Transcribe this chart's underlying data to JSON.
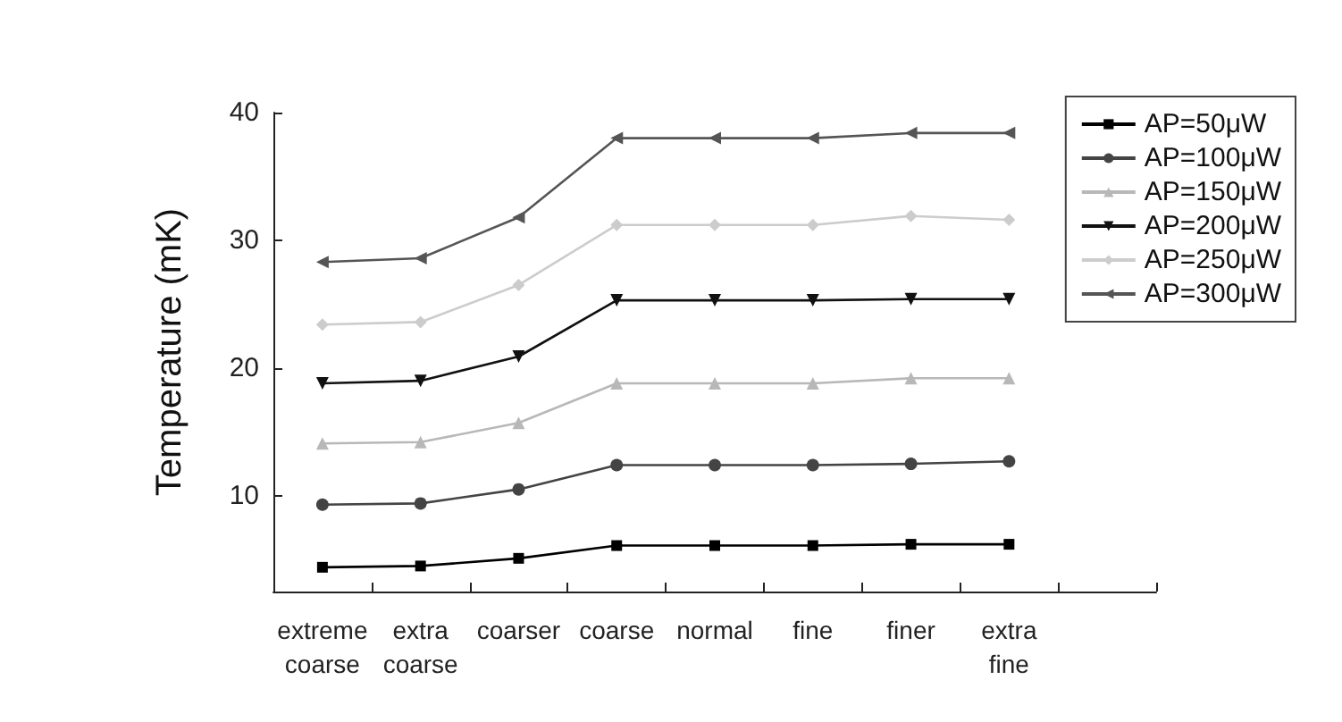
{
  "chart_data": {
    "type": "line",
    "ylabel": "Temperature (mK)",
    "categories": [
      "extreme\ncoarse",
      "extra\ncoarse",
      "coarser",
      "coarse",
      "normal",
      "fine",
      "finer",
      "extra\nfine",
      null
    ],
    "ylim": [
      2.5,
      40
    ],
    "yticks": [
      10,
      20,
      30,
      40
    ],
    "grid": false,
    "legend": "top right",
    "line_style": "solid",
    "series": [
      {
        "name": "AP=50μW",
        "color": "#000000",
        "marker": "square",
        "values": [
          4.4,
          4.5,
          5.1,
          6.1,
          6.1,
          6.1,
          6.2,
          6.2,
          null
        ]
      },
      {
        "name": "AP=100μW",
        "color": "#444444",
        "marker": "circle",
        "values": [
          9.3,
          9.4,
          10.5,
          12.4,
          12.4,
          12.4,
          12.5,
          12.7,
          null
        ]
      },
      {
        "name": "AP=150μW",
        "color": "#b8b8b8",
        "marker": "triangle",
        "values": [
          14.1,
          14.2,
          15.7,
          18.8,
          18.8,
          18.8,
          19.2,
          19.2,
          null
        ]
      },
      {
        "name": "AP=200μW",
        "color": "#111111",
        "marker": "triangle-down",
        "values": [
          18.8,
          19.0,
          20.9,
          25.3,
          25.3,
          25.3,
          25.4,
          25.4,
          null
        ]
      },
      {
        "name": "AP=250μW",
        "color": "#cccccc",
        "marker": "diamond",
        "values": [
          23.4,
          23.6,
          26.5,
          31.2,
          31.2,
          31.2,
          31.9,
          31.6,
          null
        ]
      },
      {
        "name": "AP=300μW",
        "color": "#555555",
        "marker": "triangle-left",
        "values": [
          28.3,
          28.6,
          31.8,
          38.0,
          38.0,
          38.0,
          38.4,
          38.4,
          null
        ]
      }
    ]
  }
}
